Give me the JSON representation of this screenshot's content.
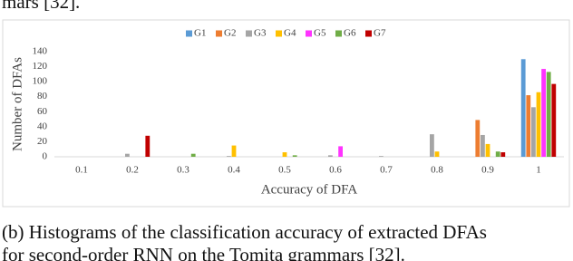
{
  "top_text": "mars [32].",
  "chart_data": {
    "type": "bar",
    "ylabel": "Number of DFAs",
    "xlabel": "Accuracy of DFA",
    "categories": [
      "0.1",
      "0.2",
      "0.3",
      "0.4",
      "0.5",
      "0.6",
      "0.7",
      "0.8",
      "0.9",
      "1"
    ],
    "series": [
      {
        "name": "G1",
        "color": "#5b9bd5",
        "values": [
          0,
          0,
          0,
          0,
          0,
          0,
          0,
          0,
          0,
          130
        ]
      },
      {
        "name": "G2",
        "color": "#ed7d31",
        "values": [
          0,
          0,
          0,
          0,
          0,
          0,
          0,
          0,
          49,
          82
        ]
      },
      {
        "name": "G3",
        "color": "#a5a5a5",
        "values": [
          0,
          4,
          0,
          1,
          0,
          2,
          1,
          30,
          29,
          66
        ]
      },
      {
        "name": "G4",
        "color": "#ffc000",
        "values": [
          0,
          0,
          0,
          15,
          6,
          0,
          0,
          7,
          17,
          86
        ]
      },
      {
        "name": "G5",
        "color": "#ff33ff",
        "values": [
          0,
          0,
          0,
          0,
          0,
          14,
          0,
          0,
          0,
          117
        ]
      },
      {
        "name": "G6",
        "color": "#70ad47",
        "values": [
          0,
          0,
          4,
          0,
          2,
          0,
          0,
          0,
          7,
          113
        ]
      },
      {
        "name": "G7",
        "color": "#c00000",
        "values": [
          0,
          28,
          0,
          0,
          0,
          0,
          0,
          0,
          6,
          97
        ]
      }
    ],
    "ylim": [
      0,
      140
    ],
    "yticks": [
      0,
      20,
      40,
      60,
      80,
      100,
      120,
      140
    ],
    "grid": false,
    "legend": "top"
  },
  "caption": [
    "(b) Histograms of the classification accuracy of extracted DFAs",
    "for second-order RNN on the Tomita grammars [32]."
  ]
}
